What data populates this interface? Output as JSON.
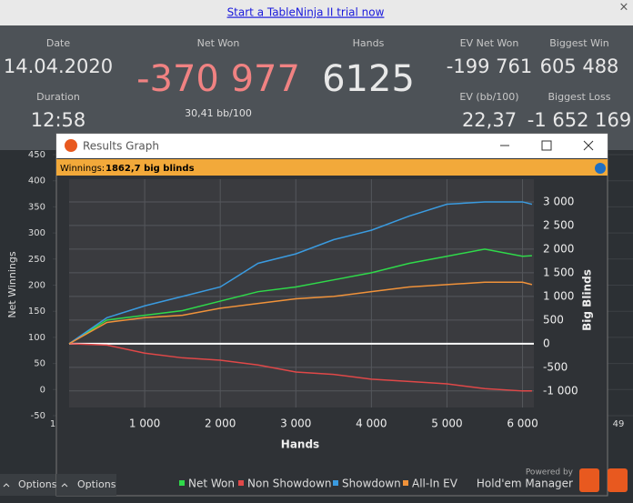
{
  "banner": {
    "link": "Start a TableNinja II trial now",
    "close": "×"
  },
  "stats": {
    "date_label": "Date",
    "date": "14.04.2020",
    "duration_label": "Duration",
    "duration": "12:58",
    "net_won_label": "Net Won",
    "net_won": "-370 977",
    "bb100": "30,41 bb/100",
    "hands_label": "Hands",
    "hands": "6125",
    "ev_net_won_label": "EV Net Won",
    "ev_net_won": "-199 761",
    "ev_bb100_label": "EV (bb/100)",
    "ev_bb100": "22,37",
    "biggest_win_label": "Biggest Win",
    "biggest_win": "605 488",
    "biggest_loss_label": "Biggest Loss",
    "biggest_loss": "-1 652 169"
  },
  "background_chart": {
    "y_label": "Net Winnings",
    "ylim": [
      450,
      -50
    ],
    "yticks": [
      450,
      400,
      350,
      300,
      250,
      200,
      150,
      100,
      50,
      0,
      -50
    ],
    "x_labels": [
      "1",
      "49"
    ],
    "options": "Options"
  },
  "window": {
    "title": "Results Graph",
    "winnings_label": "Winnings:",
    "winnings_value": "1862,7 big blinds",
    "options": "Options",
    "powered_by": "Powered by",
    "brand": "Hold'em Manager"
  },
  "chart_data": {
    "type": "line",
    "x_label": "Hands",
    "y_label": "Big Blinds",
    "x": [
      0,
      500,
      1000,
      1500,
      2000,
      2500,
      3000,
      3500,
      4000,
      4500,
      5000,
      5500,
      6000,
      6125
    ],
    "series": [
      {
        "name": "Net Won",
        "color": "#2fd94a",
        "values": [
          0,
          500,
          600,
          700,
          900,
          1100,
          1200,
          1350,
          1500,
          1700,
          1850,
          2000,
          1850,
          1860
        ]
      },
      {
        "name": "Non Showdown",
        "color": "#e04848",
        "values": [
          0,
          -30,
          -200,
          -300,
          -350,
          -450,
          -600,
          -650,
          -750,
          -800,
          -850,
          -950,
          -1000,
          -1000
        ]
      },
      {
        "name": "Showdown",
        "color": "#3a9be0",
        "values": [
          0,
          550,
          800,
          1000,
          1200,
          1700,
          1900,
          2200,
          2400,
          2700,
          2950,
          3000,
          3000,
          2950
        ]
      },
      {
        "name": "All-In EV",
        "color": "#f0923a",
        "values": [
          0,
          450,
          550,
          600,
          750,
          850,
          950,
          1000,
          1100,
          1200,
          1250,
          1300,
          1300,
          1250
        ]
      }
    ],
    "xlim": [
      0,
      6150
    ],
    "ylim": [
      -1350,
      3480
    ],
    "xticks": [
      {
        "value": 1000,
        "label": "1 000"
      },
      {
        "value": 2000,
        "label": "2 000"
      },
      {
        "value": 3000,
        "label": "3 000"
      },
      {
        "value": 4000,
        "label": "4 000"
      },
      {
        "value": 5000,
        "label": "5 000"
      },
      {
        "value": 6000,
        "label": "6 000"
      }
    ],
    "yticks": [
      {
        "value": -1000,
        "label": "-1 000"
      },
      -500,
      0,
      500,
      {
        "value": 1000,
        "label": "1 000"
      },
      {
        "value": 1500,
        "label": "1 500"
      },
      {
        "value": 2000,
        "label": "2 000"
      },
      {
        "value": 2500,
        "label": "2 500"
      },
      {
        "value": 3000,
        "label": "3 000"
      }
    ],
    "grid": true
  }
}
